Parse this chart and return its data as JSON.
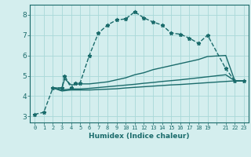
{
  "xlabel": "Humidex (Indice chaleur)",
  "bg_color": "#d4eeee",
  "grid_color": "#a8d8d8",
  "line_color": "#1a6b6b",
  "xlim": [
    -0.5,
    23.5
  ],
  "ylim": [
    2.7,
    8.5
  ],
  "yticks": [
    3,
    4,
    5,
    6,
    7,
    8
  ],
  "series": [
    {
      "x": [
        0,
        1,
        2,
        3,
        3.3,
        4,
        4.5,
        5,
        6,
        7,
        8,
        9,
        10,
        11,
        12,
        13,
        14,
        15,
        16,
        17,
        18,
        19,
        21,
        22,
        23
      ],
      "y": [
        3.1,
        3.2,
        4.4,
        4.4,
        5.0,
        4.4,
        4.65,
        4.65,
        6.0,
        7.1,
        7.5,
        7.75,
        7.8,
        8.15,
        7.85,
        7.65,
        7.5,
        7.1,
        7.05,
        6.85,
        6.6,
        7.0,
        5.35,
        4.75,
        4.75
      ],
      "marker": "*",
      "markersize": 3.5,
      "linewidth": 1.0,
      "linestyle": "--"
    },
    {
      "x": [
        2,
        3,
        3.3,
        4,
        5,
        6,
        7,
        8,
        9,
        10,
        11,
        12,
        13,
        14,
        15,
        16,
        17,
        18,
        19,
        21,
        22,
        23
      ],
      "y": [
        4.4,
        4.4,
        4.85,
        4.55,
        4.6,
        4.6,
        4.65,
        4.7,
        4.8,
        4.9,
        5.05,
        5.15,
        5.3,
        5.4,
        5.5,
        5.6,
        5.7,
        5.8,
        5.95,
        6.0,
        4.75,
        4.75
      ],
      "marker": null,
      "markersize": 0,
      "linewidth": 1.0,
      "linestyle": "-"
    },
    {
      "x": [
        2,
        3,
        4,
        5,
        6,
        7,
        8,
        9,
        10,
        11,
        12,
        13,
        14,
        15,
        16,
        17,
        18,
        19,
        21,
        22,
        23
      ],
      "y": [
        4.4,
        4.3,
        4.35,
        4.35,
        4.38,
        4.42,
        4.46,
        4.5,
        4.54,
        4.58,
        4.63,
        4.67,
        4.72,
        4.76,
        4.8,
        4.85,
        4.9,
        4.95,
        5.05,
        4.75,
        4.75
      ],
      "marker": null,
      "markersize": 0,
      "linewidth": 1.0,
      "linestyle": "-"
    },
    {
      "x": [
        2,
        3,
        4,
        5,
        6,
        7,
        8,
        9,
        10,
        11,
        12,
        13,
        14,
        15,
        16,
        17,
        18,
        19,
        21,
        22,
        23
      ],
      "y": [
        4.4,
        4.25,
        4.3,
        4.3,
        4.3,
        4.32,
        4.34,
        4.36,
        4.4,
        4.43,
        4.46,
        4.49,
        4.52,
        4.55,
        4.57,
        4.6,
        4.63,
        4.66,
        4.72,
        4.75,
        4.75
      ],
      "marker": null,
      "markersize": 0,
      "linewidth": 1.0,
      "linestyle": "-"
    }
  ]
}
